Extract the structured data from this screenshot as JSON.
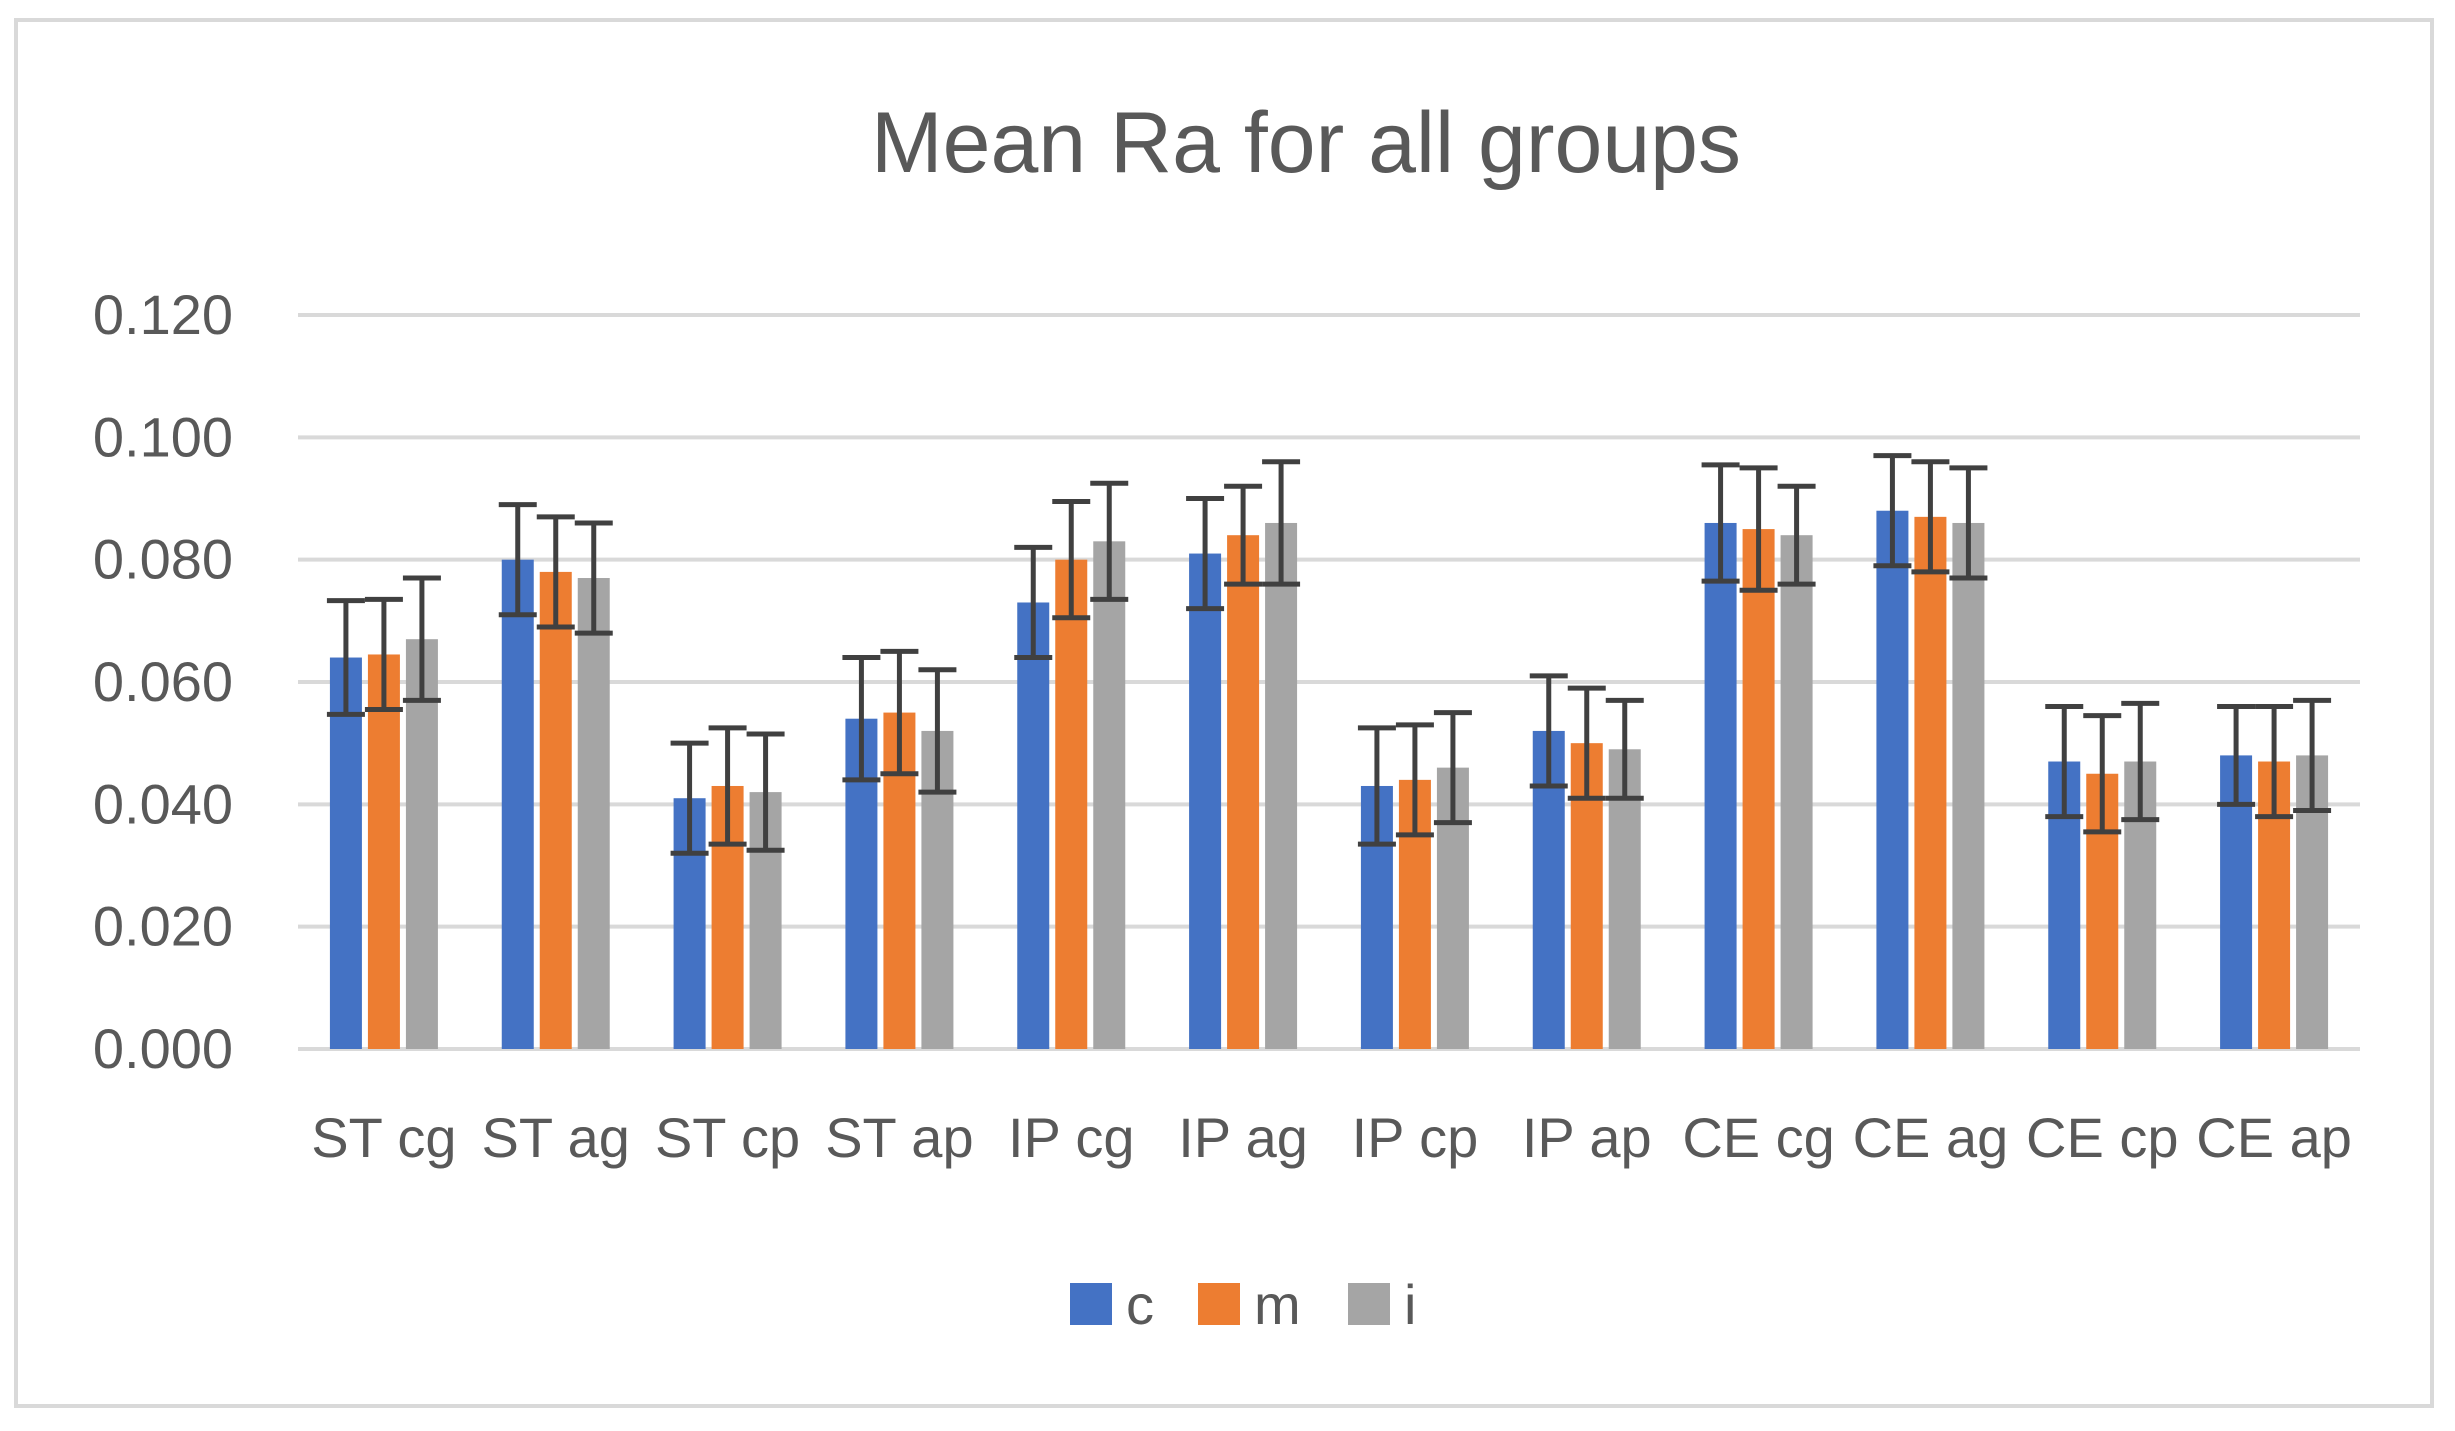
{
  "chart_data": {
    "type": "bar",
    "title": "Mean Ra for all groups",
    "xlabel": "",
    "ylabel": "",
    "ylim": [
      0,
      0.12
    ],
    "yticks": [
      "0.000",
      "0.020",
      "0.040",
      "0.060",
      "0.080",
      "0.100",
      "0.120"
    ],
    "ytick_values": [
      0,
      0.02,
      0.04,
      0.06,
      0.08,
      0.1,
      0.12
    ],
    "grid": true,
    "legend_position": "bottom",
    "categories": [
      "ST cg",
      "ST ag",
      "ST cp",
      "ST ap",
      "IP cg",
      "IP ag",
      "IP cp",
      "IP ap",
      "CE cg",
      "CE ag",
      "CE cp",
      "CE ap"
    ],
    "series": [
      {
        "name": "c",
        "color": "#4472c4",
        "values": [
          0.064,
          0.08,
          0.041,
          0.054,
          0.073,
          0.081,
          0.043,
          0.052,
          0.086,
          0.088,
          0.047,
          0.048
        ],
        "errors": [
          0.0093,
          0.009,
          0.009,
          0.01,
          0.009,
          0.009,
          0.0095,
          0.009,
          0.0095,
          0.009,
          0.009,
          0.008
        ]
      },
      {
        "name": "m",
        "color": "#ed7d31",
        "values": [
          0.0645,
          0.078,
          0.043,
          0.055,
          0.08,
          0.084,
          0.044,
          0.05,
          0.085,
          0.087,
          0.045,
          0.047
        ],
        "errors": [
          0.009,
          0.009,
          0.0095,
          0.01,
          0.0095,
          0.008,
          0.009,
          0.009,
          0.01,
          0.009,
          0.0095,
          0.009
        ]
      },
      {
        "name": "i",
        "color": "#a5a5a5",
        "values": [
          0.067,
          0.077,
          0.042,
          0.052,
          0.083,
          0.086,
          0.046,
          0.049,
          0.084,
          0.086,
          0.047,
          0.048
        ],
        "errors": [
          0.01,
          0.009,
          0.0095,
          0.01,
          0.0095,
          0.01,
          0.009,
          0.008,
          0.008,
          0.009,
          0.0095,
          0.009
        ]
      }
    ],
    "error_bar_color": "#404040"
  }
}
